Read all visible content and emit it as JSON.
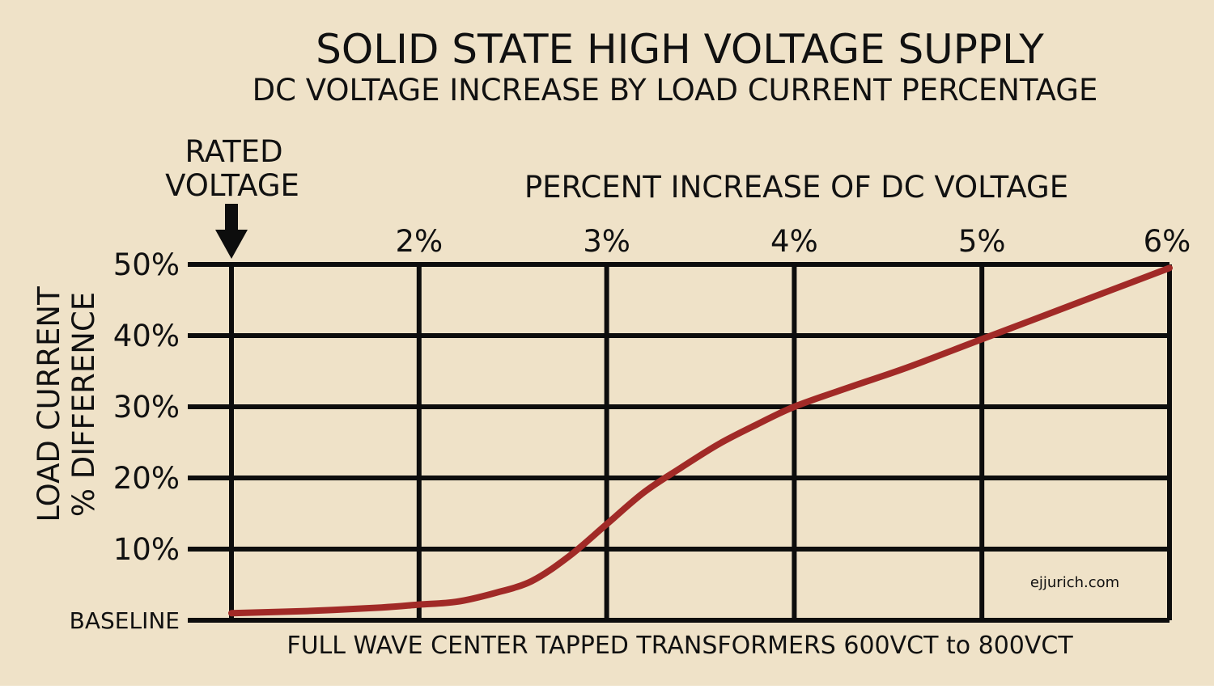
{
  "colors": {
    "background": "#efe2c8",
    "grid": "#0d0d0d",
    "curve": "#a12a27",
    "text": "#111111"
  },
  "chart_data": {
    "type": "line",
    "title": "SOLID STATE HIGH VOLTAGE SUPPLY",
    "subtitle": "DC VOLTAGE INCREASE BY LOAD CURRENT PERCENTAGE",
    "xlabel": "PERCENT INCREASE OF DC VOLTAGE",
    "ylabel": [
      "LOAD CURRENT",
      "% DIFFERENCE"
    ],
    "footer": "FULL WAVE CENTER TAPPED TRANSFORMERS 600VCT to 800VCT",
    "watermark": "ejjurich.com",
    "annotation": {
      "label": [
        "RATED",
        "VOLTAGE"
      ],
      "x": 1,
      "marker": "down-arrow"
    },
    "x_axis": {
      "position": "top",
      "range": [
        1,
        6
      ],
      "ticks": [
        1,
        2,
        3,
        4,
        5,
        6
      ],
      "tick_labels": [
        "",
        "2%",
        "3%",
        "4%",
        "5%",
        "6%"
      ]
    },
    "y_axis": {
      "range": [
        0,
        50
      ],
      "ticks": [
        0,
        10,
        20,
        30,
        40,
        50
      ],
      "tick_labels": [
        "BASELINE",
        "10%",
        "20%",
        "30%",
        "40%",
        "50%"
      ]
    },
    "grid": true,
    "series": [
      {
        "points": [
          [
            1.0,
            1.0
          ],
          [
            1.4,
            1.3
          ],
          [
            1.8,
            1.8
          ],
          [
            2.0,
            2.2
          ],
          [
            2.2,
            2.6
          ],
          [
            2.4,
            3.8
          ],
          [
            2.6,
            5.5
          ],
          [
            2.8,
            9.0
          ],
          [
            3.0,
            13.5
          ],
          [
            3.2,
            18.0
          ],
          [
            3.4,
            21.5
          ],
          [
            3.6,
            24.8
          ],
          [
            3.8,
            27.5
          ],
          [
            4.0,
            30.0
          ],
          [
            4.3,
            32.8
          ],
          [
            4.6,
            35.5
          ],
          [
            5.0,
            39.5
          ],
          [
            5.5,
            44.5
          ],
          [
            6.0,
            49.5
          ]
        ]
      }
    ]
  }
}
